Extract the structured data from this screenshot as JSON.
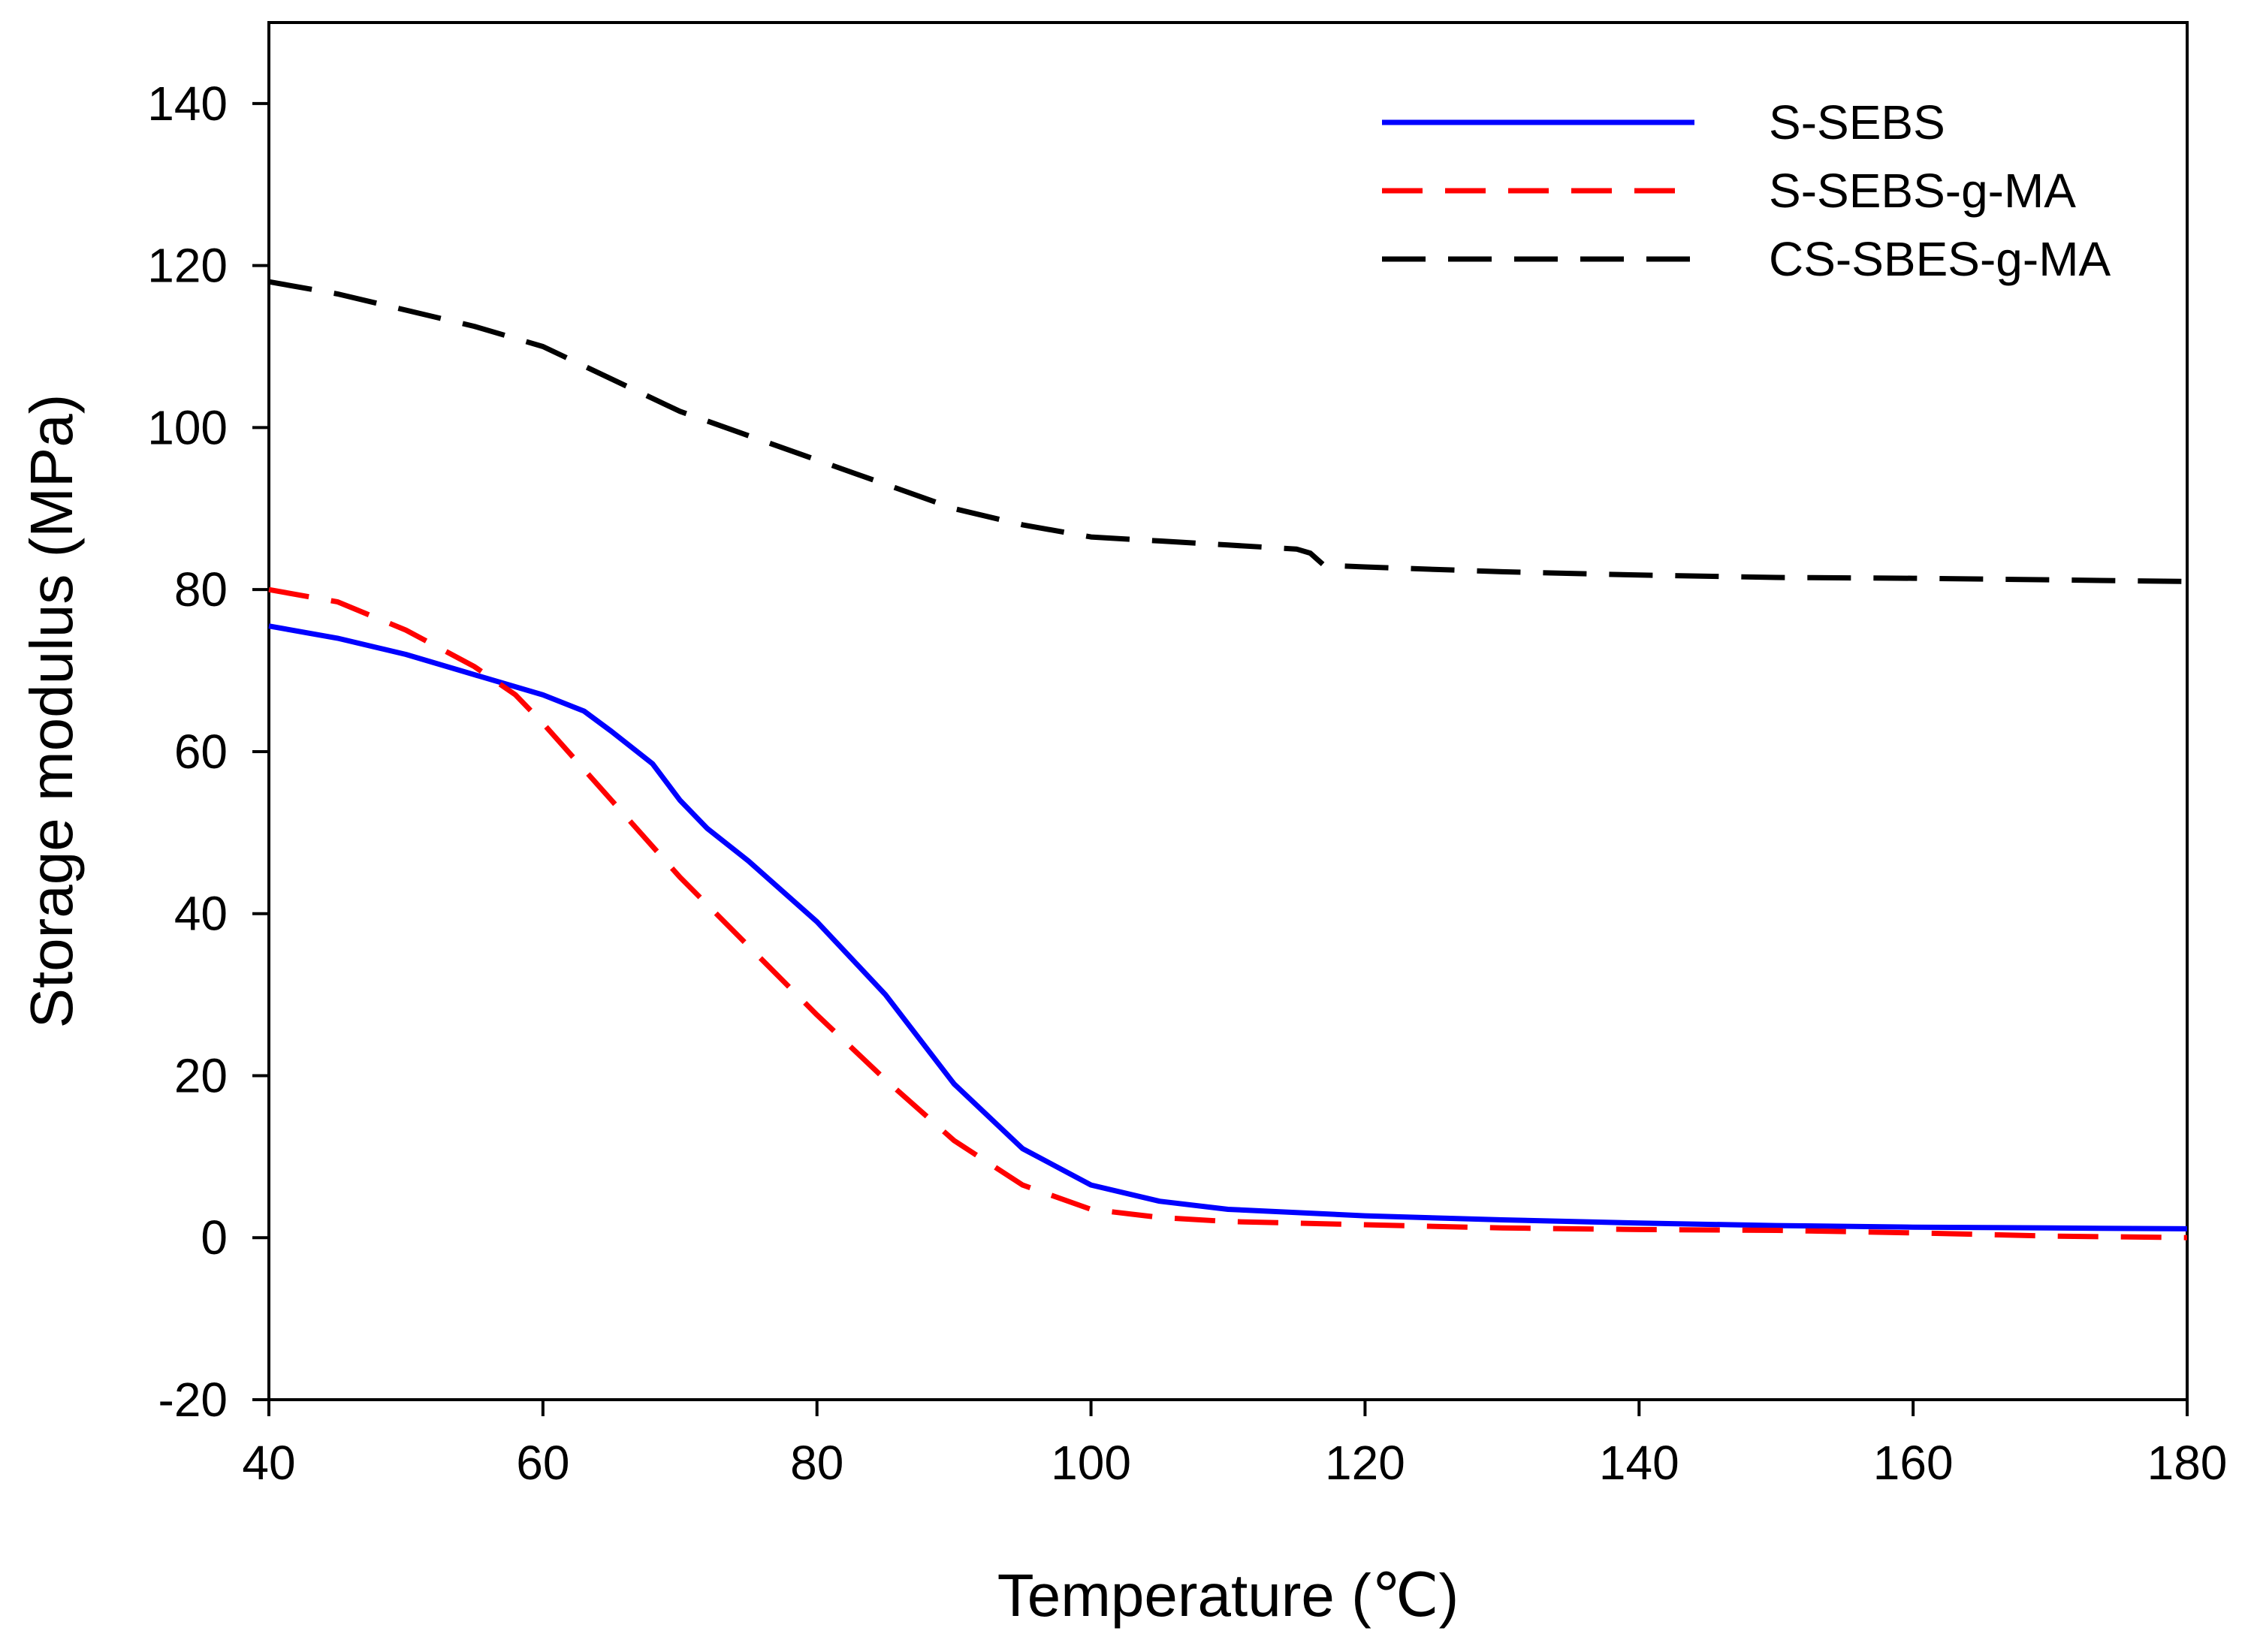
{
  "chart_data": {
    "type": "line",
    "title": "",
    "xlabel": "Temperature (℃)",
    "ylabel": "Storage modulus (MPa)",
    "xlim": [
      40,
      180
    ],
    "ylim": [
      -20,
      150
    ],
    "xticks": [
      40,
      60,
      80,
      100,
      120,
      140,
      160,
      180
    ],
    "yticks": [
      -20,
      0,
      20,
      40,
      60,
      80,
      100,
      120,
      140
    ],
    "grid": false,
    "legend_position": "top-right",
    "series": [
      {
        "name": "S-SEBS",
        "color": "#0000ff",
        "style": "solid",
        "x": [
          40,
          45,
          50,
          55,
          60,
          63,
          65,
          68,
          70,
          72,
          75,
          80,
          85,
          90,
          95,
          100,
          105,
          110,
          120,
          130,
          140,
          150,
          160,
          170,
          180
        ],
        "y": [
          75.5,
          74.0,
          72.0,
          69.5,
          67.0,
          65.0,
          62.5,
          58.5,
          54.0,
          50.5,
          46.5,
          39.0,
          30.0,
          19.0,
          11.0,
          6.5,
          4.5,
          3.5,
          2.7,
          2.2,
          1.8,
          1.5,
          1.3,
          1.2,
          1.1
        ]
      },
      {
        "name": "S-SEBS-g-MA",
        "color": "#ff0000",
        "style": "dashed",
        "x": [
          40,
          45,
          50,
          55,
          58,
          60,
          65,
          70,
          75,
          80,
          85,
          90,
          95,
          100,
          105,
          110,
          120,
          130,
          140,
          150,
          160,
          170,
          180
        ],
        "y": [
          80.0,
          78.5,
          75.0,
          70.5,
          67.0,
          63.5,
          54.0,
          44.5,
          36.0,
          27.5,
          19.5,
          12.0,
          6.5,
          3.5,
          2.5,
          2.0,
          1.6,
          1.2,
          1.0,
          0.9,
          0.6,
          0.2,
          0.0
        ]
      },
      {
        "name": "CS-SBES-g-MA",
        "color": "#000000",
        "style": "dashed",
        "x": [
          40,
          45,
          50,
          55,
          60,
          65,
          70,
          75,
          80,
          85,
          90,
          95,
          100,
          105,
          110,
          115,
          116,
          117,
          120,
          130,
          140,
          150,
          160,
          170,
          180
        ],
        "y": [
          118.0,
          116.5,
          114.5,
          112.5,
          110.0,
          106.0,
          102.0,
          99.0,
          96.0,
          93.0,
          90.0,
          88.0,
          86.5,
          86.0,
          85.5,
          85.0,
          84.5,
          83.0,
          82.8,
          82.2,
          81.8,
          81.5,
          81.4,
          81.2,
          81.0
        ]
      }
    ]
  }
}
